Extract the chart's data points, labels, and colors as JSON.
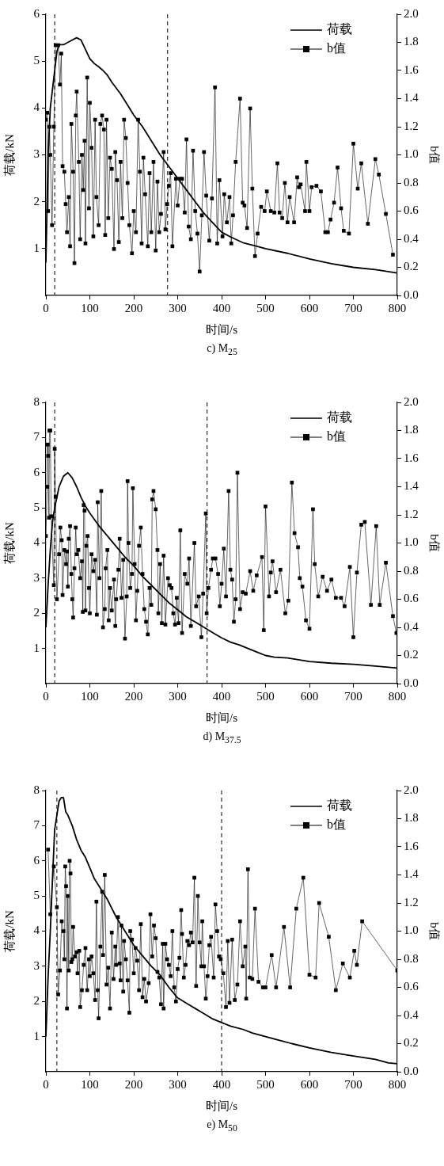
{
  "chart_data": [
    {
      "type": "line",
      "title": "c) M$_{25}$",
      "xlabel": "时间/s",
      "ylabel": "荷载/kN",
      "y2label": "b值",
      "xlim": [
        0,
        800
      ],
      "xticks": [
        0,
        100,
        200,
        300,
        400,
        500,
        600,
        700,
        800
      ],
      "ylim": [
        0,
        6
      ],
      "yticks": [
        1,
        2,
        3,
        4,
        5,
        6
      ],
      "y2lim": [
        0,
        2
      ],
      "y2ticks": [
        {
          "value": 0,
          "label": "0.0"
        },
        0.2,
        0.4,
        0.6,
        0.8,
        {
          "value": 1,
          "label": "1.0"
        },
        1.2,
        1.4,
        1.6,
        1.8,
        {
          "value": 2,
          "label": "2.0"
        }
      ],
      "legend": "top right",
      "ref_lines": [
        {
          "axis": "x",
          "value": 20,
          "line_style": "dashed"
        },
        {
          "axis": "x",
          "value": 277,
          "line_style": "dashed"
        }
      ],
      "series": [
        {
          "name": "荷载",
          "color": "#000000",
          "marker": "none",
          "x": [
            0,
            5,
            10,
            20,
            25,
            30,
            40,
            50,
            60,
            70,
            80,
            90,
            100,
            110,
            120,
            130,
            140,
            150,
            170,
            190,
            200,
            220,
            240,
            260,
            280,
            300,
            320,
            340,
            360,
            380,
            400,
            420,
            450,
            480,
            500,
            550,
            600,
            650,
            700,
            750,
            800
          ],
          "values": [
            0.7,
            3.0,
            4.0,
            4.8,
            5.2,
            5.35,
            5.35,
            5.4,
            5.45,
            5.5,
            5.45,
            5.25,
            5.05,
            4.95,
            4.88,
            4.8,
            4.7,
            4.55,
            4.3,
            4.0,
            3.85,
            3.6,
            3.3,
            3.0,
            2.75,
            2.5,
            2.25,
            2.0,
            1.75,
            1.55,
            1.35,
            1.25,
            1.12,
            1.05,
            1.0,
            0.9,
            0.78,
            0.68,
            0.6,
            0.55,
            0.48
          ]
        },
        {
          "name": "b值",
          "axis": "y2",
          "color": "#000000",
          "marker": "square",
          "x": [
            0,
            3,
            5,
            8,
            10,
            14,
            18,
            22,
            28,
            32,
            35,
            38,
            42,
            45,
            48,
            52,
            55,
            58,
            62,
            65,
            68,
            70,
            75,
            78,
            82,
            85,
            88,
            90,
            94,
            98,
            100,
            104,
            108,
            112,
            115,
            120,
            124,
            128,
            132,
            135,
            138,
            142,
            146,
            150,
            155,
            158,
            162,
            166,
            170,
            174,
            178,
            182,
            186,
            190,
            196,
            200,
            205,
            210,
            214,
            218,
            222,
            226,
            232,
            236,
            240,
            245,
            250,
            254,
            258,
            262,
            268,
            272,
            276,
            280,
            284,
            288,
            296,
            300,
            305,
            310,
            316,
            320,
            325,
            330,
            335,
            340,
            345,
            350,
            355,
            360,
            365,
            372,
            378,
            385,
            390,
            395,
            402,
            406,
            412,
            418,
            422,
            426,
            432,
            442,
            448,
            452,
            458,
            465,
            470,
            476,
            482,
            490,
            498,
            503,
            512,
            520,
            527,
            532,
            538,
            544,
            550,
            555,
            565,
            572,
            576,
            580,
            590,
            593,
            600,
            605,
            616,
            626,
            636,
            642,
            648,
            656,
            664,
            672,
            678,
            690,
            700,
            710,
            718,
            733,
            750,
            758,
            774,
            790
          ],
          "values": [
            1.25,
            1.3,
            0.6,
            1.2,
            1.0,
            0.5,
            1.2,
            1.78,
            1.78,
            1.5,
            1.72,
            0.92,
            0.88,
            0.65,
            0.45,
            0.7,
            0.35,
            1.22,
            0.88,
            0.23,
            1.28,
            1.45,
            0.95,
            0.4,
            1.0,
            0.75,
            1.1,
            0.37,
            1.55,
            0.62,
            1.37,
            1.05,
            0.42,
            1.25,
            0.7,
            0.5,
            1.22,
            1.28,
            1.18,
            0.43,
            1.25,
            0.55,
            0.98,
            0.9,
            0.33,
            1.02,
            0.82,
            0.38,
            0.95,
            0.55,
            1.25,
            1.12,
            0.8,
            0.5,
            0.3,
            0.6,
            0.45,
            1.25,
            0.88,
            0.37,
            0.98,
            0.72,
            0.35,
            0.87,
            0.45,
            0.95,
            0.32,
            0.81,
            0.45,
            0.58,
            1.02,
            0.47,
            0.65,
            0.78,
            0.87,
            0.35,
            0.83,
            0.64,
            0.83,
            0.83,
            0.59,
            1.11,
            0.49,
            0.4,
            1.03,
            0.6,
            0.44,
            0.17,
            0.57,
            1.02,
            0.71,
            0.39,
            0.69,
            1.48,
            0.37,
            0.82,
            0.42,
            0.72,
            0.52,
            0.7,
            0.37,
            0.57,
            0.95,
            1.4,
            0.66,
            0.64,
            0.48,
            1.33,
            0.76,
            0.28,
            0.44,
            0.63,
            0.6,
            0.74,
            0.6,
            0.59,
            0.94,
            0.59,
            0.55,
            0.8,
            0.52,
            0.7,
            0.52,
            0.84,
            0.77,
            0.79,
            0.6,
            0.95,
            0.6,
            0.77,
            0.78,
            0.74,
            0.45,
            0.45,
            0.54,
            0.66,
            0.91,
            0.62,
            0.46,
            0.44,
            1.08,
            0.76,
            0.94,
            0.51,
            0.97,
            0.86,
            0.58,
            0.29
          ]
        }
      ]
    },
    {
      "type": "line",
      "title": "d) M$_{37.5}$",
      "xlabel": "时间/s",
      "ylabel": "荷载/kN",
      "y2label": "b值",
      "xlim": [
        0,
        800
      ],
      "xticks": [
        0,
        100,
        200,
        300,
        400,
        500,
        600,
        700,
        800
      ],
      "ylim": [
        0,
        8
      ],
      "yticks": [
        1,
        2,
        3,
        4,
        5,
        6,
        7,
        8
      ],
      "y2lim": [
        0,
        2
      ],
      "y2ticks": [
        {
          "value": 0,
          "label": "0.0"
        },
        0.2,
        0.4,
        0.6,
        0.8,
        {
          "value": 1,
          "label": "1.0"
        },
        1.2,
        1.4,
        1.6,
        1.8,
        {
          "value": 2,
          "label": "2.0"
        }
      ],
      "legend": "top right",
      "ref_lines": [
        {
          "axis": "x",
          "value": 20,
          "line_style": "dashed"
        },
        {
          "axis": "x",
          "value": 367,
          "line_style": "dashed"
        }
      ],
      "series": [
        {
          "name": "荷载",
          "color": "#000000",
          "marker": "none",
          "x": [
            0,
            5,
            10,
            15,
            20,
            25,
            30,
            40,
            50,
            60,
            70,
            80,
            90,
            100,
            120,
            140,
            160,
            180,
            200,
            220,
            240,
            260,
            280,
            300,
            320,
            340,
            360,
            380,
            400,
            420,
            440,
            460,
            480,
            500,
            520,
            550,
            600,
            650,
            700,
            750,
            800
          ],
          "values": [
            1.6,
            2.8,
            3.8,
            4.6,
            5.0,
            5.3,
            5.6,
            5.9,
            6.0,
            5.85,
            5.6,
            5.3,
            5.05,
            4.85,
            4.5,
            4.2,
            3.9,
            3.6,
            3.35,
            3.05,
            2.8,
            2.55,
            2.3,
            2.1,
            1.9,
            1.75,
            1.6,
            1.45,
            1.3,
            1.18,
            1.1,
            1.0,
            0.9,
            0.8,
            0.75,
            0.73,
            0.63,
            0.58,
            0.55,
            0.5,
            0.44
          ]
        },
        {
          "name": "b值",
          "axis": "y2",
          "color": "#000000",
          "marker": "square",
          "x": [
            0,
            3,
            4,
            5,
            7,
            8,
            10,
            12,
            18,
            20,
            22,
            25,
            30,
            33,
            36,
            38,
            42,
            46,
            48,
            50,
            52,
            55,
            58,
            60,
            62,
            65,
            68,
            70,
            74,
            78,
            82,
            84,
            86,
            88,
            90,
            92,
            95,
            98,
            100,
            104,
            108,
            112,
            116,
            118,
            122,
            126,
            130,
            134,
            136,
            140,
            143,
            146,
            150,
            155,
            158,
            160,
            165,
            168,
            172,
            176,
            180,
            184,
            186,
            188,
            192,
            196,
            198,
            202,
            205,
            208,
            212,
            216,
            220,
            224,
            228,
            232,
            236,
            240,
            242,
            245,
            250,
            254,
            256,
            260,
            264,
            268,
            272,
            278,
            282,
            286,
            290,
            294,
            298,
            302,
            306,
            310,
            316,
            322,
            326,
            330,
            338,
            342,
            348,
            354,
            358,
            364,
            366,
            370,
            376,
            380,
            386,
            392,
            396,
            400,
            405,
            410,
            416,
            420,
            424,
            428,
            432,
            436,
            442,
            448,
            455,
            465,
            472,
            480,
            492,
            496,
            500,
            508,
            512,
            516,
            524,
            534,
            545,
            552,
            560,
            566,
            574,
            578,
            584,
            592,
            600,
            608,
            612,
            620,
            630,
            640,
            650,
            660,
            672,
            680,
            692,
            700,
            708,
            718,
            726,
            740,
            752,
            760,
            774,
            790,
            798
          ],
          "values": [
            1.05,
            1.4,
            1.7,
            1.62,
            1.18,
            1.8,
            1.8,
            1.19,
            0.7,
            1.67,
            1.33,
            0.6,
            0.92,
            1.11,
            1.02,
            0.63,
            0.95,
            0.85,
            0.94,
            0.69,
            1.03,
            1.12,
            0.78,
            0.6,
            0.47,
            0.82,
            1.11,
            0.92,
            0.95,
            0.75,
            0.87,
            0.51,
            1.27,
            1.23,
            0.52,
            0.98,
            1.05,
            0.68,
            0.5,
            0.92,
            0.8,
            0.88,
            0.49,
            1.29,
            0.75,
            1.37,
            0.4,
            0.53,
            0.82,
            0.95,
            0.45,
            0.68,
            0.52,
            0.74,
            0.41,
            0.6,
            0.81,
            1.03,
            0.61,
            0.88,
            0.32,
            0.62,
            1.44,
            1.0,
            0.68,
            0.78,
            1.39,
            0.85,
            0.45,
            0.66,
            0.98,
            1.11,
            0.78,
            0.53,
            0.44,
            0.35,
            0.68,
            0.56,
            1.31,
            1.37,
            1.24,
            0.95,
            0.5,
            0.85,
            0.43,
            0.91,
            0.42,
            0.75,
            0.7,
            0.68,
            0.5,
            0.42,
            0.61,
            0.43,
            1.09,
            0.36,
            0.78,
            0.71,
            0.89,
            0.41,
            1.0,
            0.55,
            0.62,
            0.33,
            0.64,
            1.21,
            0.5,
            0.68,
            0.81,
            0.89,
            0.89,
            0.78,
            0.55,
            0.71,
            0.96,
            0.62,
            1.37,
            0.81,
            0.74,
            0.44,
            0.6,
            1.5,
            0.53,
            0.65,
            0.64,
            0.8,
            0.66,
            0.77,
            0.9,
            0.38,
            1.26,
            0.62,
            0.79,
            0.87,
            0.65,
            0.81,
            0.5,
            0.59,
            1.43,
            1.07,
            0.97,
            0.75,
            0.69,
            0.45,
            0.39,
            1.24,
            0.85,
            0.62,
            0.76,
            0.66,
            0.74,
            0.61,
            0.61,
            0.55,
            0.83,
            0.33,
            0.79,
            1.13,
            1.15,
            0.56,
            1.12,
            0.56,
            0.86,
            0.48,
            0.36
          ]
        }
      ]
    },
    {
      "type": "line",
      "title": "e) M$_{50}$",
      "xlabel": "时间/s",
      "ylabel": "荷载/kN",
      "y2label": "b值",
      "xlim": [
        0,
        800
      ],
      "xticks": [
        0,
        100,
        200,
        300,
        400,
        500,
        600,
        700,
        800
      ],
      "ylim": [
        0,
        8
      ],
      "yticks": [
        1,
        2,
        3,
        4,
        5,
        6,
        7,
        8
      ],
      "y2lim": [
        0,
        2
      ],
      "y2ticks": [
        {
          "value": 0,
          "label": "0.0"
        },
        0.2,
        0.4,
        0.6,
        0.8,
        {
          "value": 1,
          "label": "1.0"
        },
        1.2,
        1.4,
        1.6,
        1.8,
        {
          "value": 2,
          "label": "2.0"
        }
      ],
      "legend": "top right",
      "ref_lines": [
        {
          "axis": "x",
          "value": 25,
          "line_style": "dashed"
        },
        {
          "axis": "x",
          "value": 400,
          "line_style": "dashed"
        }
      ],
      "series": [
        {
          "name": "荷载",
          "color": "#000000",
          "marker": "none",
          "x": [
            0,
            5,
            10,
            15,
            20,
            25,
            30,
            35,
            40,
            45,
            50,
            60,
            70,
            80,
            90,
            100,
            110,
            120,
            140,
            160,
            180,
            200,
            220,
            240,
            260,
            280,
            300,
            320,
            340,
            360,
            380,
            400,
            420,
            450,
            470,
            500,
            530,
            560,
            600,
            650,
            700,
            750,
            780,
            800
          ],
          "values": [
            1.0,
            2.7,
            4.0,
            5.5,
            6.9,
            7.3,
            7.7,
            7.8,
            7.8,
            7.4,
            7.3,
            7.0,
            6.6,
            6.3,
            6.1,
            5.8,
            5.5,
            5.3,
            4.9,
            4.4,
            4.0,
            3.6,
            3.3,
            3.0,
            2.75,
            2.4,
            2.1,
            1.95,
            1.8,
            1.65,
            1.5,
            1.4,
            1.3,
            1.2,
            1.1,
            1.0,
            0.9,
            0.8,
            0.68,
            0.55,
            0.45,
            0.35,
            0.25,
            0.23
          ]
        },
        {
          "name": "b值",
          "axis": "y2",
          "color": "#000000",
          "marker": "square",
          "x": [
            5,
            10,
            18,
            25,
            28,
            32,
            36,
            40,
            42,
            44,
            46,
            48,
            50,
            52,
            54,
            56,
            58,
            60,
            62,
            66,
            70,
            72,
            76,
            78,
            82,
            86,
            90,
            94,
            98,
            100,
            104,
            108,
            112,
            115,
            118,
            120,
            124,
            128,
            130,
            134,
            138,
            142,
            146,
            150,
            154,
            158,
            160,
            164,
            168,
            170,
            172,
            176,
            178,
            182,
            186,
            190,
            192,
            196,
            200,
            204,
            208,
            212,
            216,
            220,
            224,
            228,
            234,
            238,
            242,
            246,
            250,
            254,
            258,
            262,
            266,
            268,
            272,
            276,
            280,
            284,
            288,
            292,
            296,
            300,
            304,
            308,
            310,
            314,
            318,
            322,
            326,
            330,
            334,
            338,
            342,
            346,
            350,
            354,
            356,
            360,
            364,
            368,
            372,
            376,
            382,
            386,
            390,
            394,
            398,
            404,
            410,
            414,
            418,
            424,
            430,
            436,
            442,
            448,
            454,
            456,
            460,
            464,
            470,
            476,
            484,
            494,
            500,
            514,
            524,
            542,
            556,
            570,
            586,
            600,
            614,
            622,
            644,
            660,
            676,
            692,
            702,
            708,
            720,
            800
          ],
          "values": [
            1.58,
            1.12,
            1.46,
            1.17,
            0.55,
            0.72,
            1.07,
            1.0,
            0.8,
            1.46,
            1.32,
            0.45,
            1.25,
            0.72,
            1.5,
            1.41,
            0.78,
            0.8,
            1.03,
            0.82,
            0.85,
            0.7,
            0.86,
            0.46,
            0.58,
            0.76,
            0.88,
            0.58,
            0.8,
            0.68,
            0.82,
            0.7,
            0.51,
            1.21,
            0.58,
            0.38,
            0.89,
            1.28,
            0.83,
            1.4,
            0.62,
            0.74,
            0.45,
            0.99,
            0.66,
            0.89,
            0.76,
            1.1,
            0.77,
            0.65,
            1.04,
            0.57,
            0.93,
            0.8,
            0.65,
            0.42,
            1.0,
            0.94,
            0.7,
            0.88,
            0.79,
            0.58,
            1.05,
            0.53,
            0.66,
            0.5,
            0.63,
            1.12,
            0.82,
            1.04,
            0.95,
            0.71,
            0.67,
            0.48,
            0.91,
            0.45,
            0.91,
            0.8,
            0.76,
            0.68,
            1.0,
            0.6,
            0.5,
            0.73,
            0.81,
            1.15,
            0.98,
            0.67,
            0.76,
            0.93,
            0.9,
            0.99,
            0.92,
            1.38,
            0.61,
            1.25,
            0.92,
            0.75,
            1.07,
            0.75,
            0.52,
            0.68,
            0.9,
            0.96,
            0.67,
            1.19,
            1.0,
            0.82,
            0.8,
            0.7,
            0.46,
            0.93,
            0.49,
            0.94,
            0.51,
            0.62,
            1.07,
            0.75,
            0.89,
            0.52,
            1.44,
            0.67,
            0.66,
            1.16,
            0.64,
            0.6,
            0.6,
            0.83,
            0.6,
            1.03,
            0.6,
            1.16,
            1.38,
            0.69,
            0.67,
            1.2,
            0.96,
            0.58,
            0.77,
            0.67,
            0.86,
            0.76,
            1.07,
            0.72
          ]
        }
      ]
    }
  ]
}
